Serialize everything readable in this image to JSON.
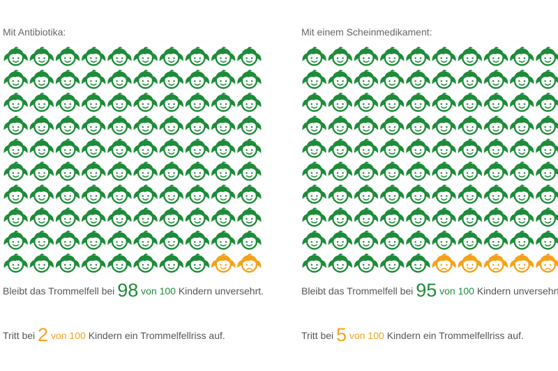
{
  "colors": {
    "unaffected": "#1e8c3a",
    "affected": "#f5a21a",
    "text": "#555555"
  },
  "chart_data": [
    {
      "type": "pictogram",
      "title": "Mit Antibiotika:",
      "total": 100,
      "rows": 10,
      "cols": 10,
      "unaffected": 98,
      "affected": 2,
      "stat1": {
        "pre": "Bleibt das Trommelfell bei",
        "value": "98",
        "of": "von 100",
        "post": "Kindern unversehrt."
      },
      "stat2": {
        "pre": "Tritt bei",
        "value": "2",
        "of": "von 100",
        "post": "Kindern ein Trommelfellriss auf."
      }
    },
    {
      "type": "pictogram",
      "title": "Mit einem Scheinmedikament:",
      "total": 100,
      "rows": 10,
      "cols": 10,
      "unaffected": 95,
      "affected": 5,
      "stat1": {
        "pre": "Bleibt das Trommelfell bei",
        "value": "95",
        "of": "von 100",
        "post": "Kindern unversehrt."
      },
      "stat2": {
        "pre": "Tritt bei",
        "value": "5",
        "of": "von 100",
        "post": "Kindern ein Trommelfellriss auf."
      }
    }
  ]
}
